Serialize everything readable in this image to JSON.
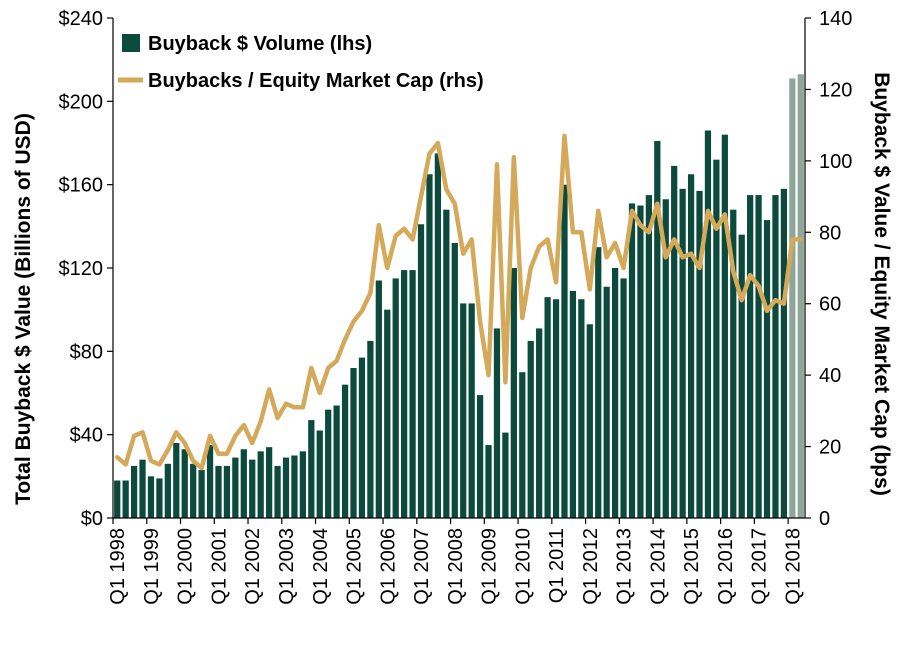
{
  "chart_data": {
    "type": "bar+line",
    "title": "",
    "left_axis": {
      "label": "Total Buyback $ Value (Billions of USD)",
      "ylim": [
        0,
        240
      ],
      "ticks": [
        0,
        40,
        80,
        120,
        160,
        200,
        240
      ],
      "tick_labels": [
        "$0",
        "$40",
        "$80",
        "$120",
        "$160",
        "$200",
        "$240"
      ]
    },
    "right_axis": {
      "label": "Buyback $ Value / Equity Market Cap (bps)",
      "ylim": [
        0,
        140
      ],
      "ticks": [
        0,
        20,
        40,
        60,
        80,
        100,
        120,
        140
      ],
      "tick_labels": [
        "0",
        "20",
        "40",
        "60",
        "80",
        "100",
        "120",
        "140"
      ]
    },
    "x_tick_labels": [
      "Q1 1998",
      "Q1 1999",
      "Q1 2000",
      "Q1 2001",
      "Q1 2002",
      "Q1 2003",
      "Q1 2004",
      "Q1 2005",
      "Q1 2006",
      "Q1 2007",
      "Q1 2008",
      "Q1 2009",
      "Q1 2010",
      "Q1 2011",
      "Q1 2012",
      "Q1 2013",
      "Q1 2014",
      "Q1 2015",
      "Q1 2016",
      "Q1 2017",
      "Q1 2018"
    ],
    "x_tick_every": 4,
    "legend": {
      "placement": "top-left",
      "entries": [
        "Buyback $ Volume (lhs)",
        "Buybacks / Equity Market Cap (rhs)"
      ]
    },
    "colors": {
      "bar": "#0b4a3c",
      "bar_estimate": "#8fa69b",
      "line": "#d4a95a",
      "axis": "#000000"
    },
    "estimate_count": 2,
    "series": [
      {
        "name": "Buyback $ Volume (lhs)",
        "axis": "left",
        "values": [
          18,
          18,
          25,
          28,
          20,
          19,
          26,
          36,
          33,
          26,
          23,
          35,
          25,
          25,
          29,
          33,
          28,
          32,
          34,
          25,
          29,
          30,
          32,
          47,
          42,
          52,
          54,
          64,
          72,
          77,
          85,
          114,
          100,
          115,
          119,
          119,
          141,
          165,
          175,
          148,
          132,
          103,
          103,
          59,
          35,
          91,
          41,
          120,
          70,
          85,
          91,
          106,
          105,
          160,
          109,
          105,
          93,
          130,
          111,
          120,
          115,
          151,
          150,
          155,
          181,
          153,
          169,
          158,
          165,
          157,
          186,
          172,
          184,
          148,
          136,
          155,
          155,
          143,
          155,
          158,
          211,
          213
        ]
      },
      {
        "name": "Buybacks / Equity Market Cap (rhs)",
        "axis": "right",
        "values": [
          17,
          15,
          23,
          24,
          16,
          15,
          19,
          24,
          21,
          16,
          14,
          23,
          18,
          18,
          23,
          26,
          21,
          27,
          36,
          28,
          32,
          31,
          31,
          42,
          35,
          42,
          44,
          50,
          55,
          58,
          63,
          82,
          70,
          79,
          81,
          78,
          90,
          102,
          105,
          92,
          88,
          74,
          78,
          55,
          40,
          99,
          38,
          101,
          56,
          70,
          76,
          78,
          66,
          107,
          80,
          80,
          64,
          86,
          73,
          77,
          70,
          86,
          82,
          80,
          88,
          73,
          78,
          73,
          74,
          70,
          86,
          81,
          85,
          69,
          61,
          68,
          65,
          58,
          61,
          60,
          78,
          78
        ]
      }
    ]
  }
}
